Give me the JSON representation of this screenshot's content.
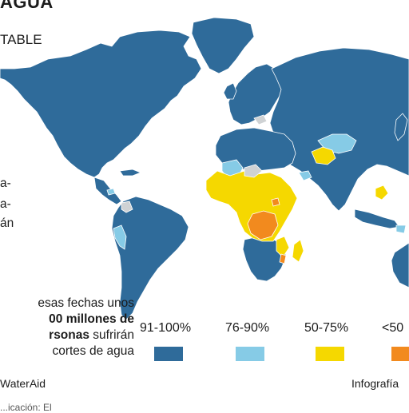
{
  "title_fragment": "AGUA",
  "subtitle_fragment": "TABLE",
  "side_text_lines": [
    "a-",
    "a-",
    "án"
  ],
  "note": {
    "line1": "esas fechas unos",
    "line2_bold": "00 millones de",
    "line3_bold": "rsonas",
    "line3_rest": " sufrirán",
    "line4": "cortes de agua"
  },
  "legend": [
    {
      "label": "91-100%",
      "color": "#2f6b9a"
    },
    {
      "label": "76-90%",
      "color": "#86cbe6"
    },
    {
      "label": "50-75%",
      "color": "#f5d800"
    },
    {
      "label": "<50",
      "color": "#f28a1e"
    }
  ],
  "colors": {
    "no_data": "#cfd2d4",
    "background": "#ffffff"
  },
  "source": "WaterAid",
  "credit": "Infografía",
  "footer_fragment": "...icación: El"
}
